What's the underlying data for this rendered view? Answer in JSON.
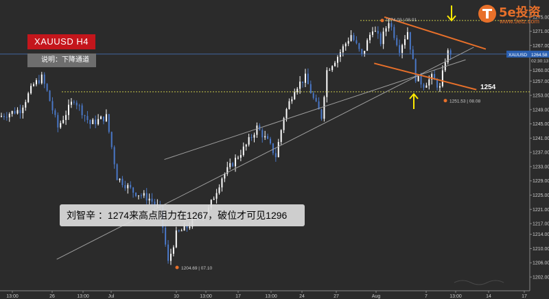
{
  "symbol_badge": "XAUUSD  H4",
  "note_badge": "说明：下降通道",
  "comment": "刘智辛  ：1274来高点阻力在1267，破位才可见1296",
  "logo": {
    "text": "5e投资",
    "url": "www.5etz.com"
  },
  "colors": {
    "background": "#2b2b2b",
    "bull_candle": "#ffffff",
    "bear_candle": "#4a78c8",
    "channel_line": "#e8702a",
    "support_line": "#c8c84a",
    "arrow": "#ffeb00",
    "current_price_line": "#4a78c8",
    "trendline": "#a0a0a0"
  },
  "chart_data": {
    "type": "candlestick",
    "instrument": "XAUUSD",
    "timeframe": "H4",
    "ylim": [
      1202.0,
      1279.0
    ],
    "y_ticks": [
      "1202.00",
      "1206.00",
      "1210.00",
      "1214.00",
      "1217.00",
      "1221.00",
      "1225.00",
      "1229.00",
      "1233.00",
      "1237.00",
      "1241.00",
      "1245.00",
      "1249.00",
      "1253.00",
      "1257.00",
      "1260.00",
      "1264.58",
      "1267.00",
      "1271.00",
      "1275.00"
    ],
    "x_ticks": [
      "13:00",
      "26",
      "13:00",
      "Jul",
      "10:00",
      "10",
      "13:00",
      "17",
      "13:00",
      "24",
      "27",
      "13:00",
      "Aug",
      "7",
      "13:00",
      "14",
      "17"
    ],
    "current_price": {
      "label": "XAUUSD",
      "value": "1264.58",
      "countdown": "02:30:13"
    },
    "annotations": {
      "high": {
        "value": "1274.03",
        "time": "08.01"
      },
      "low_jul": {
        "value": "1204.69",
        "time": "07.10"
      },
      "low_aug": {
        "value": "1251.53",
        "time": "08.08"
      },
      "support_label": "1254",
      "support_level": 1254.0,
      "arrow_down_at": "Aug 8 13:00",
      "arrow_up_at": "Aug 7"
    },
    "channel": {
      "upper": [
        {
          "t": 0.8,
          "p": 1275.0
        },
        {
          "t": 38.5,
          "p": 1266.0
        }
      ],
      "lower": [
        {
          "t": -3.0,
          "p": 1262.0
        },
        {
          "t": 35.0,
          "p": 1254.6
        }
      ]
    },
    "trendlines": [
      {
        "from": {
          "t": -121.0,
          "p": 1207.0
        },
        "to": {
          "t": 34.0,
          "p": 1266.5
        }
      },
      {
        "from": {
          "t": -81.0,
          "p": 1235.0
        },
        "to": {
          "t": 31.0,
          "p": 1263.0
        }
      }
    ]
  }
}
